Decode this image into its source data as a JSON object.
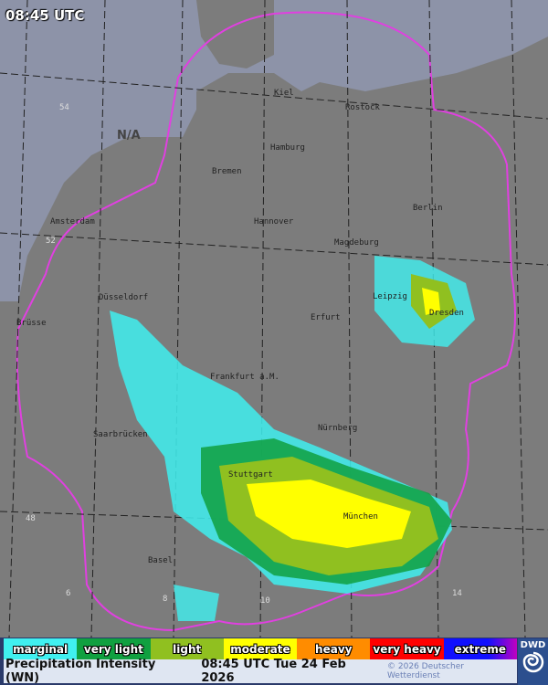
{
  "time_overlay": "08:45 UTC",
  "map": {
    "na_label": "N/A",
    "grid_labels": [
      "54",
      "52",
      "48",
      "6",
      "8",
      "10",
      "14"
    ],
    "cities": [
      "Rostock",
      "Kiel",
      "Hamburg",
      "Bremen",
      "Amsterdam",
      "Hannover",
      "Berlin",
      "Magdeburg",
      "Düsseldorf",
      "Leipzig",
      "Dresden",
      "Erfurt",
      "Brüsse",
      "Frankfurt a.M.",
      "Nürnberg",
      "Saarbrücken",
      "Stuttgart",
      "München",
      "Basel"
    ],
    "colors": {
      "land": "#7a7a7a",
      "sea": "#8d93a8",
      "radar_outline": "#e040e0",
      "borders": "#222222",
      "roads": "#8a3a4a",
      "rivers": "#3a5ad0"
    }
  },
  "legend": [
    {
      "label": "marginal",
      "color": "#40f0f0"
    },
    {
      "label": "very light",
      "color": "#10a040"
    },
    {
      "label": "light",
      "color": "#90c020"
    },
    {
      "label": "moderate",
      "color": "#ffff00"
    },
    {
      "label": "heavy",
      "color": "#ff8c00"
    },
    {
      "label": "very heavy",
      "color": "#ff0000"
    },
    {
      "label": "extreme",
      "color": "#1010ff"
    }
  ],
  "footer": {
    "title": "Precipitation Intensity (WN)",
    "timestamp": "08:45 UTC Tue 24 Feb 2026",
    "copyright": "© 2026 Deutscher Wetterdienst"
  },
  "logo": {
    "text": "DWD"
  }
}
